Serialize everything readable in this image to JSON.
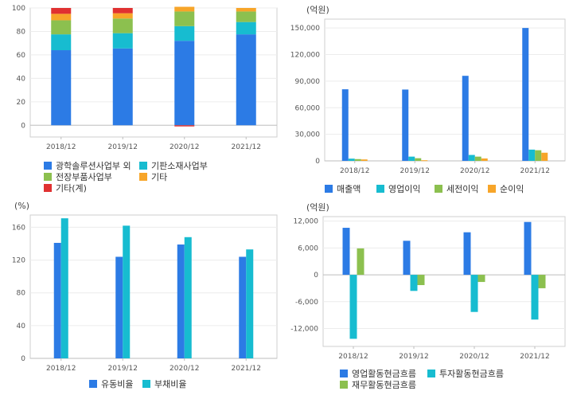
{
  "charts": {
    "business_mix": {
      "legend": [
        "광학솔루션사업부 외",
        "기판소재사업부",
        "전장부품사업부",
        "기타",
        "기타(계)"
      ]
    },
    "income": {
      "unit": "(억원)",
      "legend": [
        "매출액",
        "영업이익",
        "세전이익",
        "순이익"
      ]
    },
    "ratio": {
      "unit": "(%)",
      "legend": [
        "유동비율",
        "부채비율"
      ]
    },
    "cashflow": {
      "unit": "(억원)",
      "legend": [
        "영업활동현금흐름",
        "투자활동현금흐름",
        "재무활동현금흐름"
      ]
    }
  },
  "chart_data": [
    {
      "type": "bar",
      "stacked": true,
      "categories": [
        "2018/12",
        "2019/12",
        "2020/12",
        "2021/12"
      ],
      "ylim": [
        -10,
        100
      ],
      "yticks": [
        0,
        20,
        40,
        60,
        80,
        100
      ],
      "grid": true,
      "legend_position": "bottom",
      "series": [
        {
          "name": "광학솔루션사업부 외",
          "color": "#2c7be5",
          "values": [
            64,
            65.5,
            72,
            77.5
          ]
        },
        {
          "name": "기판소재사업부",
          "color": "#17bcd0",
          "values": [
            13.5,
            13,
            12.5,
            10.5
          ]
        },
        {
          "name": "전장부품사업부",
          "color": "#8cc04f",
          "values": [
            12,
            12.5,
            12.5,
            9
          ]
        },
        {
          "name": "기타",
          "color": "#f7a529",
          "values": [
            5.5,
            4.5,
            4,
            3
          ]
        },
        {
          "name": "기타(계)",
          "color": "#e03131",
          "values": [
            5,
            4.5,
            -1,
            0
          ]
        }
      ]
    },
    {
      "type": "bar",
      "categories": [
        "2018/12",
        "2019/12",
        "2020/12",
        "2021/12"
      ],
      "ylim": [
        0,
        160000
      ],
      "yticks": [
        0,
        30000,
        60000,
        90000,
        120000,
        150000
      ],
      "ytick_labels": [
        "0",
        "30,000",
        "60,000",
        "90,000",
        "120,000",
        "150,000"
      ],
      "grid": true,
      "legend_position": "bottom",
      "series": [
        {
          "name": "매출액",
          "color": "#2c7be5",
          "values": [
            80800,
            80500,
            96000,
            150000
          ]
        },
        {
          "name": "영업이익",
          "color": "#17bcd0",
          "values": [
            2500,
            4800,
            6700,
            12700
          ]
        },
        {
          "name": "세전이익",
          "color": "#8cc04f",
          "values": [
            2000,
            3000,
            4800,
            12000
          ]
        },
        {
          "name": "순이익",
          "color": "#f7a529",
          "values": [
            1600,
            700,
            2700,
            9200
          ]
        }
      ]
    },
    {
      "type": "bar",
      "categories": [
        "2018/12",
        "2019/12",
        "2020/12",
        "2021/12"
      ],
      "ylim": [
        0,
        175
      ],
      "yticks": [
        0,
        40,
        80,
        120,
        160
      ],
      "grid": true,
      "legend_position": "bottom",
      "series": [
        {
          "name": "유동비율",
          "color": "#2c7be5",
          "values": [
            141,
            124,
            139,
            124
          ]
        },
        {
          "name": "부채비율",
          "color": "#17bcd0",
          "values": [
            171,
            162,
            148,
            133
          ]
        }
      ]
    },
    {
      "type": "bar",
      "categories": [
        "2018/12",
        "2019/12",
        "2020/12",
        "2021/12"
      ],
      "ylim": [
        -16000,
        13000
      ],
      "yticks": [
        -12000,
        -6000,
        0,
        6000,
        12000
      ],
      "ytick_labels": [
        "-12,000",
        "-6,000",
        "0",
        "6,000",
        "12,000"
      ],
      "grid": true,
      "legend_position": "bottom",
      "series": [
        {
          "name": "영업활동현금흐름",
          "color": "#2c7be5",
          "values": [
            10500,
            7600,
            9500,
            11800
          ]
        },
        {
          "name": "투자활동현금흐름",
          "color": "#17bcd0",
          "values": [
            -14300,
            -3600,
            -8300,
            -10000
          ]
        },
        {
          "name": "재무활동현금흐름",
          "color": "#8cc04f",
          "values": [
            5900,
            -2300,
            -1600,
            -3000
          ]
        }
      ]
    }
  ]
}
